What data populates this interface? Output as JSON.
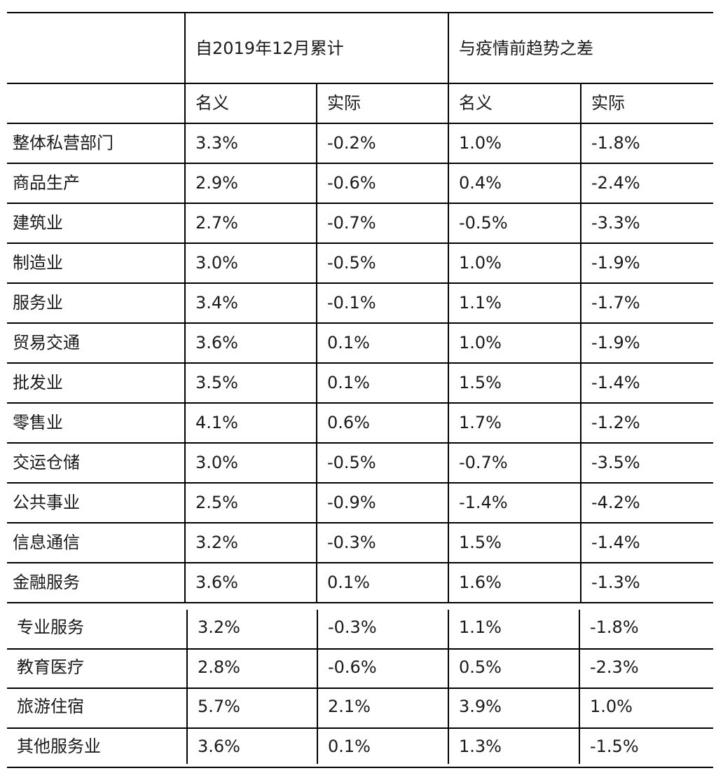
{
  "table": {
    "group_headers": [
      "自2019年12月累计",
      "与疫情前趋势之差"
    ],
    "sub_headers": [
      "名义",
      "实际",
      "名义",
      "实际"
    ],
    "rows": [
      {
        "label": "整体私营部门",
        "values": [
          "3.3%",
          "-0.2%",
          "1.0%",
          "-1.8%"
        ]
      },
      {
        "label": "商品生产",
        "values": [
          "2.9%",
          "-0.6%",
          "0.4%",
          "-2.4%"
        ]
      },
      {
        "label": "建筑业",
        "values": [
          "2.7%",
          "-0.7%",
          "-0.5%",
          "-3.3%"
        ]
      },
      {
        "label": "制造业",
        "values": [
          "3.0%",
          "-0.5%",
          "1.0%",
          "-1.9%"
        ]
      },
      {
        "label": "服务业",
        "values": [
          "3.4%",
          "-0.1%",
          "1.1%",
          "-1.7%"
        ]
      },
      {
        "label": "贸易交通",
        "values": [
          "3.6%",
          "0.1%",
          "1.0%",
          "-1.9%"
        ]
      },
      {
        "label": "批发业",
        "values": [
          "3.5%",
          "0.1%",
          "1.5%",
          "-1.4%"
        ]
      },
      {
        "label": "零售业",
        "values": [
          "4.1%",
          "0.6%",
          "1.7%",
          "-1.2%"
        ]
      },
      {
        "label": "交运仓储",
        "values": [
          "3.0%",
          "-0.5%",
          "-0.7%",
          "-3.5%"
        ]
      },
      {
        "label": "公共事业",
        "values": [
          "2.5%",
          "-0.9%",
          "-1.4%",
          "-4.2%"
        ]
      },
      {
        "label": "信息通信",
        "values": [
          "3.2%",
          "-0.3%",
          "1.5%",
          "-1.4%"
        ]
      },
      {
        "label": "金融服务",
        "values": [
          "3.6%",
          "0.1%",
          "1.6%",
          "-1.3%"
        ]
      },
      {
        "label": "专业服务",
        "values": [
          "3.2%",
          "-0.3%",
          "1.1%",
          "-1.8%"
        ]
      },
      {
        "label": "教育医疗",
        "values": [
          "2.8%",
          "-0.6%",
          "0.5%",
          "-2.3%"
        ]
      },
      {
        "label": "旅游住宿",
        "values": [
          "5.7%",
          "2.1%",
          "3.9%",
          "1.0%"
        ]
      },
      {
        "label": "其他服务业",
        "values": [
          "3.6%",
          "0.1%",
          "1.3%",
          "-1.5%"
        ]
      }
    ]
  }
}
